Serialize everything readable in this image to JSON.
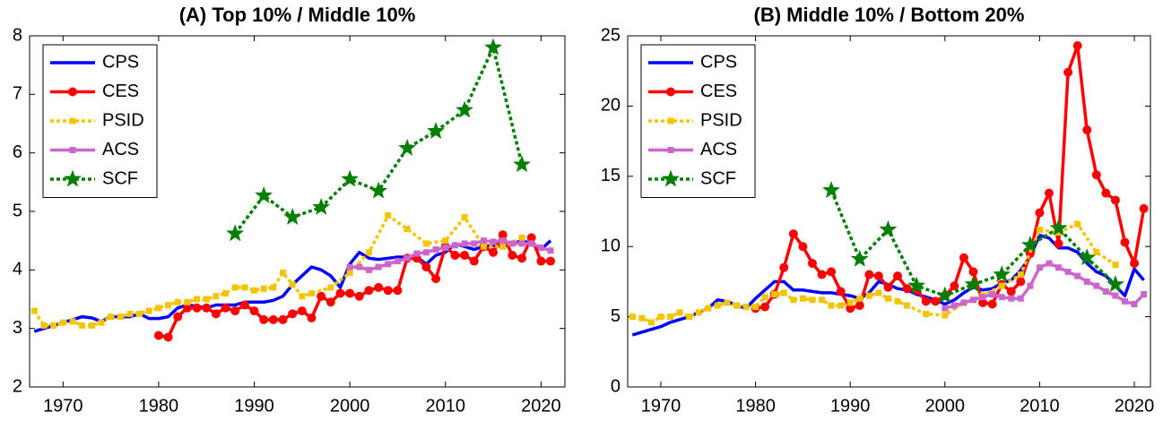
{
  "chart_data": [
    {
      "type": "line",
      "title": "(A) Top 10% / Middle 10%",
      "xlim": [
        1966.5,
        2022.5
      ],
      "ylim": [
        2,
        8
      ],
      "xticks": [
        1970,
        1980,
        1990,
        2000,
        2010,
        2020
      ],
      "yticks": [
        2,
        3,
        4,
        5,
        6,
        7,
        8
      ],
      "legend": "upper left",
      "series": [
        {
          "name": "CPS",
          "color": "#0000ff",
          "marker": "none",
          "dash": "solid",
          "x": [
            1967,
            1968,
            1969,
            1970,
            1971,
            1972,
            1973,
            1974,
            1975,
            1976,
            1977,
            1978,
            1979,
            1980,
            1981,
            1982,
            1983,
            1984,
            1985,
            1986,
            1987,
            1988,
            1989,
            1990,
            1991,
            1992,
            1993,
            1994,
            1995,
            1996,
            1997,
            1998,
            1999,
            2000,
            2001,
            2002,
            2003,
            2004,
            2005,
            2006,
            2007,
            2008,
            2009,
            2010,
            2011,
            2012,
            2013,
            2014,
            2015,
            2016,
            2017,
            2018,
            2019,
            2020,
            2021
          ],
          "values": [
            2.95,
            3.0,
            3.05,
            3.1,
            3.15,
            3.2,
            3.18,
            3.12,
            3.2,
            3.2,
            3.2,
            3.25,
            3.17,
            3.17,
            3.2,
            3.35,
            3.4,
            3.38,
            3.35,
            3.4,
            3.4,
            3.4,
            3.45,
            3.45,
            3.45,
            3.48,
            3.55,
            3.75,
            3.9,
            4.05,
            4.0,
            3.9,
            3.7,
            4.1,
            4.3,
            4.2,
            4.18,
            4.2,
            4.22,
            4.22,
            4.22,
            4.1,
            4.25,
            4.3,
            4.45,
            4.4,
            4.35,
            4.4,
            4.42,
            4.4,
            4.45,
            4.5,
            4.45,
            4.35,
            4.5
          ]
        },
        {
          "name": "CES",
          "color": "#ff0000",
          "marker": "circle",
          "dash": "solid",
          "x": [
            1980,
            1981,
            1982,
            1983,
            1984,
            1985,
            1986,
            1987,
            1988,
            1989,
            1990,
            1991,
            1992,
            1993,
            1994,
            1995,
            1996,
            1997,
            1998,
            1999,
            2000,
            2001,
            2002,
            2003,
            2004,
            2005,
            2006,
            2007,
            2008,
            2009,
            2010,
            2011,
            2012,
            2013,
            2014,
            2015,
            2016,
            2017,
            2018,
            2019,
            2020,
            2021
          ],
          "values": [
            2.88,
            2.85,
            3.2,
            3.35,
            3.35,
            3.35,
            3.25,
            3.35,
            3.3,
            3.4,
            3.3,
            3.15,
            3.15,
            3.15,
            3.25,
            3.3,
            3.18,
            3.55,
            3.45,
            3.6,
            3.6,
            3.55,
            3.65,
            3.7,
            3.65,
            3.65,
            4.2,
            4.2,
            4.05,
            3.85,
            4.4,
            4.25,
            4.25,
            4.15,
            4.4,
            4.3,
            4.6,
            4.25,
            4.2,
            4.55,
            4.15,
            4.15
          ]
        },
        {
          "name": "PSID",
          "color": "#f5c400",
          "marker": "square",
          "dash": "dotted",
          "x": [
            1967,
            1968,
            1969,
            1970,
            1971,
            1972,
            1973,
            1974,
            1975,
            1976,
            1977,
            1978,
            1979,
            1980,
            1981,
            1982,
            1983,
            1984,
            1985,
            1986,
            1987,
            1988,
            1989,
            1990,
            1991,
            1992,
            1993,
            1994,
            1995,
            1996,
            1998,
            2000,
            2002,
            2004,
            2006,
            2008,
            2010,
            2012,
            2014,
            2016,
            2018
          ],
          "values": [
            3.3,
            3.05,
            3.05,
            3.1,
            3.12,
            3.05,
            3.05,
            3.1,
            3.2,
            3.2,
            3.25,
            3.25,
            3.3,
            3.35,
            3.4,
            3.45,
            3.45,
            3.5,
            3.5,
            3.55,
            3.6,
            3.7,
            3.7,
            3.65,
            3.68,
            3.7,
            3.95,
            3.75,
            3.55,
            3.6,
            3.7,
            3.95,
            4.3,
            4.93,
            4.7,
            4.45,
            4.5,
            4.9,
            4.4,
            4.4,
            4.55
          ]
        },
        {
          "name": "ACS",
          "color": "#cc66cc",
          "marker": "square",
          "dash": "solid",
          "x": [
            2000,
            2001,
            2002,
            2003,
            2004,
            2005,
            2006,
            2007,
            2008,
            2009,
            2010,
            2011,
            2012,
            2013,
            2014,
            2015,
            2016,
            2017,
            2018,
            2019,
            2020,
            2021
          ],
          "values": [
            4.05,
            4.05,
            4.0,
            4.05,
            4.1,
            4.15,
            4.2,
            4.28,
            4.3,
            4.35,
            4.38,
            4.42,
            4.45,
            4.45,
            4.5,
            4.48,
            4.5,
            4.45,
            4.45,
            4.45,
            4.38,
            4.33
          ]
        },
        {
          "name": "SCF",
          "color": "#008000",
          "marker": "star",
          "dash": "dotted",
          "x": [
            1988,
            1991,
            1994,
            1997,
            2000,
            2003,
            2006,
            2009,
            2012,
            2015,
            2018
          ],
          "values": [
            4.62,
            5.27,
            4.9,
            5.07,
            5.55,
            5.35,
            6.08,
            6.37,
            6.73,
            7.8,
            5.8
          ]
        }
      ]
    },
    {
      "type": "line",
      "title": "(B) Middle 10% / Bottom 20%",
      "xlim": [
        1966.5,
        2021.7
      ],
      "ylim": [
        0,
        25
      ],
      "xticks": [
        1970,
        1980,
        1990,
        2000,
        2010,
        2020
      ],
      "yticks": [
        0,
        5,
        10,
        15,
        20,
        25
      ],
      "legend": "upper left",
      "series": [
        {
          "name": "CPS",
          "color": "#0000ff",
          "marker": "none",
          "dash": "solid",
          "x": [
            1967,
            1968,
            1969,
            1970,
            1971,
            1972,
            1973,
            1974,
            1975,
            1976,
            1977,
            1978,
            1979,
            1980,
            1981,
            1982,
            1983,
            1984,
            1985,
            1986,
            1987,
            1988,
            1989,
            1990,
            1991,
            1992,
            1993,
            1994,
            1995,
            1996,
            1997,
            1998,
            1999,
            2000,
            2001,
            2002,
            2003,
            2004,
            2005,
            2006,
            2007,
            2008,
            2009,
            2010,
            2011,
            2012,
            2013,
            2014,
            2015,
            2016,
            2017,
            2018,
            2019,
            2020,
            2021
          ],
          "values": [
            3.7,
            3.9,
            4.1,
            4.3,
            4.6,
            4.8,
            5.0,
            5.3,
            5.6,
            6.2,
            6.1,
            5.8,
            5.6,
            6.3,
            6.9,
            7.5,
            7.5,
            6.9,
            6.9,
            6.8,
            6.7,
            6.7,
            6.6,
            6.5,
            6.3,
            6.7,
            7.5,
            7.3,
            7.0,
            6.9,
            6.6,
            6.4,
            6.2,
            5.9,
            6.2,
            6.7,
            7.1,
            6.9,
            7.0,
            7.4,
            7.6,
            8.3,
            9.3,
            10.8,
            10.6,
            9.9,
            9.9,
            9.6,
            8.8,
            8.2,
            7.9,
            7.2,
            6.5,
            8.4,
            7.6
          ]
        },
        {
          "name": "CES",
          "color": "#ff0000",
          "marker": "circle",
          "dash": "solid",
          "x": [
            1980,
            1981,
            1982,
            1983,
            1984,
            1985,
            1986,
            1987,
            1988,
            1989,
            1990,
            1991,
            1992,
            1993,
            1994,
            1995,
            1996,
            1997,
            1998,
            1999,
            2000,
            2001,
            2002,
            2003,
            2004,
            2005,
            2006,
            2007,
            2008,
            2009,
            2010,
            2011,
            2012,
            2013,
            2014,
            2015,
            2016,
            2017,
            2018,
            2019,
            2020,
            2021
          ],
          "values": [
            5.6,
            5.7,
            6.6,
            8.5,
            10.9,
            10.0,
            8.8,
            8.0,
            8.2,
            6.8,
            5.6,
            5.8,
            8.0,
            7.9,
            7.1,
            7.9,
            7.0,
            6.9,
            6.1,
            6.1,
            6.5,
            7.2,
            9.2,
            8.2,
            6.0,
            5.9,
            7.3,
            6.8,
            7.5,
            9.5,
            12.4,
            13.8,
            10.2,
            22.4,
            24.3,
            18.3,
            15.1,
            13.8,
            13.3,
            10.3,
            8.8,
            12.7
          ]
        },
        {
          "name": "PSID",
          "color": "#f5c400",
          "marker": "square",
          "dash": "dotted",
          "x": [
            1967,
            1968,
            1969,
            1970,
            1971,
            1972,
            1973,
            1974,
            1975,
            1976,
            1977,
            1978,
            1979,
            1980,
            1981,
            1982,
            1983,
            1984,
            1985,
            1986,
            1987,
            1988,
            1989,
            1990,
            1991,
            1992,
            1993,
            1994,
            1995,
            1996,
            1998,
            2000,
            2002,
            2004,
            2006,
            2008,
            2010,
            2012,
            2014,
            2016,
            2018
          ],
          "values": [
            5.0,
            4.9,
            4.6,
            5.0,
            5.0,
            5.3,
            5.0,
            5.3,
            5.6,
            5.8,
            6.0,
            5.8,
            5.7,
            5.7,
            6.4,
            6.6,
            6.7,
            6.2,
            6.3,
            6.2,
            6.2,
            5.8,
            5.8,
            6.0,
            6.3,
            6.5,
            6.7,
            6.3,
            6.1,
            5.8,
            5.2,
            5.1,
            6.0,
            6.5,
            7.2,
            8.0,
            11.2,
            11.0,
            11.6,
            9.6,
            8.7
          ]
        },
        {
          "name": "ACS",
          "color": "#cc66cc",
          "marker": "square",
          "dash": "solid",
          "x": [
            2000,
            2001,
            2002,
            2003,
            2004,
            2005,
            2006,
            2007,
            2008,
            2009,
            2010,
            2011,
            2012,
            2013,
            2014,
            2015,
            2016,
            2017,
            2018,
            2019,
            2020,
            2021
          ],
          "values": [
            5.6,
            5.8,
            6.0,
            6.2,
            6.4,
            6.6,
            6.4,
            6.3,
            6.3,
            7.2,
            8.5,
            8.8,
            8.5,
            8.2,
            7.9,
            7.5,
            7.2,
            6.8,
            6.5,
            6.1,
            5.9,
            6.6
          ]
        },
        {
          "name": "SCF",
          "color": "#008000",
          "marker": "star",
          "dash": "dotted",
          "x": [
            1988,
            1991,
            1994,
            1997,
            2000,
            2003,
            2006,
            2009,
            2012,
            2015,
            2018
          ],
          "values": [
            14.0,
            9.1,
            11.2,
            7.2,
            6.5,
            7.3,
            8.0,
            10.1,
            11.3,
            9.2,
            7.3
          ]
        }
      ]
    }
  ]
}
